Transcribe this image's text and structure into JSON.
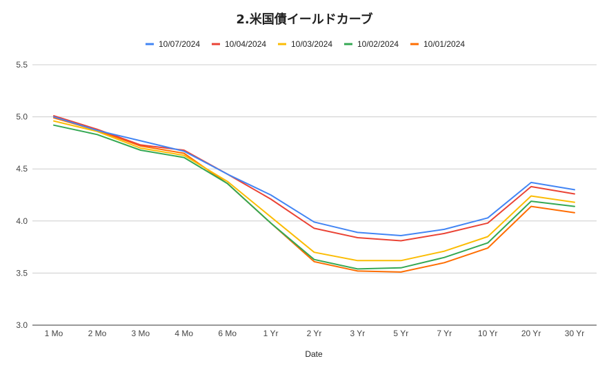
{
  "chart_data": {
    "type": "line",
    "title": "2.米国債イールドカーブ",
    "xlabel": "Date",
    "ylabel": "",
    "categories": [
      "1 Mo",
      "2 Mo",
      "3 Mo",
      "4 Mo",
      "6 Mo",
      "1 Yr",
      "2 Yr",
      "3 Yr",
      "5 Yr",
      "7 Yr",
      "10 Yr",
      "20 Yr",
      "30 Yr"
    ],
    "ylim": [
      3.0,
      5.5
    ],
    "yticks": [
      "3.0",
      "3.5",
      "4.0",
      "4.5",
      "5.0",
      "5.5"
    ],
    "grid": true,
    "legend_position": "top",
    "series": [
      {
        "name": "10/07/2024",
        "color": "#4285f4",
        "values": [
          5.0,
          4.87,
          4.77,
          4.67,
          4.45,
          4.25,
          3.99,
          3.89,
          3.86,
          3.92,
          4.03,
          4.37,
          4.3
        ]
      },
      {
        "name": "10/04/2024",
        "color": "#ea4335",
        "values": [
          5.01,
          4.88,
          4.73,
          4.68,
          4.45,
          4.21,
          3.93,
          3.84,
          3.81,
          3.88,
          3.98,
          4.33,
          4.26
        ]
      },
      {
        "name": "10/03/2024",
        "color": "#fbbc04",
        "values": [
          4.96,
          4.86,
          4.7,
          4.63,
          4.38,
          4.04,
          3.7,
          3.62,
          3.62,
          3.71,
          3.85,
          4.24,
          4.18
        ]
      },
      {
        "name": "10/02/2024",
        "color": "#34a853",
        "values": [
          4.92,
          4.83,
          4.68,
          4.61,
          4.36,
          3.98,
          3.63,
          3.54,
          3.55,
          3.65,
          3.79,
          4.19,
          4.14
        ]
      },
      {
        "name": "10/01/2024",
        "color": "#ff6d01",
        "values": [
          4.99,
          4.87,
          4.72,
          4.65,
          4.36,
          3.98,
          3.61,
          3.52,
          3.51,
          3.6,
          3.74,
          4.14,
          4.08
        ]
      }
    ]
  }
}
